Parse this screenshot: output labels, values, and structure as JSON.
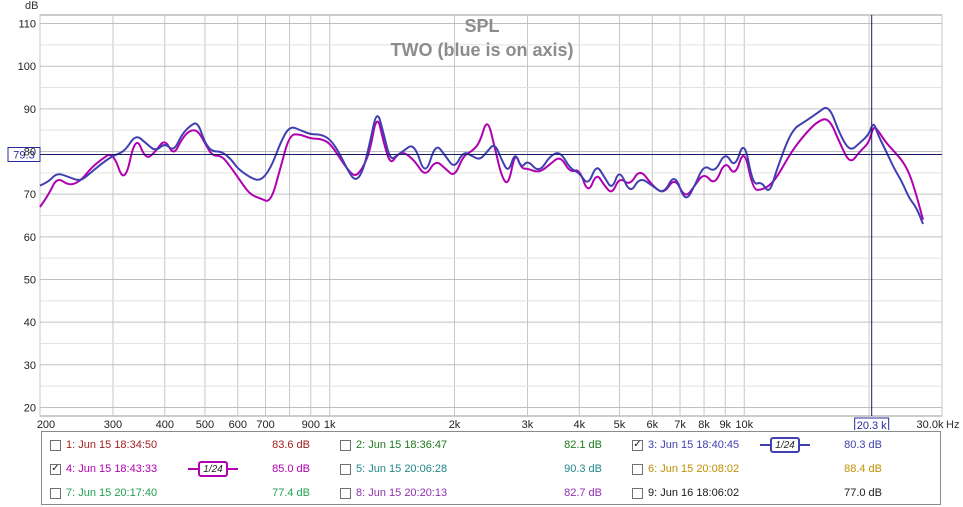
{
  "chart_data": {
    "type": "line",
    "title": "SPL",
    "subtitle": "TWO (blue is on axis)",
    "ylabel": "dB",
    "xunit": "Hz",
    "xscale": "log",
    "xlim": [
      200,
      30000
    ],
    "ylim": [
      18,
      112
    ],
    "grid": true,
    "y_ticks": [
      "20",
      "30",
      "40",
      "50",
      "60",
      "70",
      "80",
      "90",
      "100",
      "110"
    ],
    "y_tick_values": [
      20,
      30,
      40,
      50,
      60,
      70,
      80,
      90,
      100,
      110
    ],
    "x_ticks": [
      "200",
      "300",
      "400",
      "500",
      "600",
      "700",
      "900",
      "1k",
      "2k",
      "3k",
      "4k",
      "5k",
      "6k",
      "7k",
      "8k",
      "9k",
      "10k",
      "30.0k"
    ],
    "x_tick_values": [
      200,
      300,
      400,
      500,
      600,
      700,
      900,
      1000,
      2000,
      3000,
      4000,
      5000,
      6000,
      7000,
      8000,
      9000,
      10000,
      30000
    ],
    "cursor_y": 79.3,
    "cursor_y_label": "79.3",
    "cursor_x": 20300,
    "cursor_x_label": "20.3 k",
    "series": [
      {
        "name": "3: Jun 15 18:40:45",
        "color": "#4040b0",
        "x": [
          200,
          210,
          220,
          235,
          250,
          265,
          280,
          300,
          320,
          340,
          360,
          380,
          400,
          420,
          440,
          460,
          480,
          500,
          520,
          550,
          580,
          600,
          640,
          680,
          720,
          760,
          800,
          850,
          900,
          950,
          1000,
          1050,
          1100,
          1150,
          1200,
          1250,
          1300,
          1350,
          1400,
          1450,
          1500,
          1600,
          1700,
          1800,
          1900,
          2000,
          2100,
          2200,
          2300,
          2400,
          2500,
          2600,
          2700,
          2800,
          2900,
          3000,
          3200,
          3400,
          3600,
          3800,
          4000,
          4200,
          4400,
          4600,
          4800,
          5000,
          5300,
          5600,
          6000,
          6400,
          6800,
          7200,
          7600,
          8000,
          8500,
          9000,
          9500,
          10000,
          10500,
          11000,
          11500,
          12000,
          13000,
          14000,
          15000,
          16000,
          17000,
          18000,
          19000,
          20000,
          20500,
          21000,
          22000,
          23000,
          24000,
          25000,
          26000,
          27000
        ],
        "y": [
          72,
          73,
          75,
          74,
          73,
          75,
          77,
          79,
          80,
          84,
          82,
          80,
          82,
          80,
          84,
          86,
          87,
          82,
          80,
          80,
          78,
          76,
          74,
          73,
          76,
          82,
          86,
          85,
          84,
          84,
          83,
          80,
          76,
          73,
          75,
          82,
          90,
          84,
          78,
          79,
          80,
          82,
          74,
          82,
          79,
          76,
          80,
          79,
          78,
          80,
          82,
          78,
          75,
          80,
          76,
          78,
          75,
          79,
          80,
          76,
          75,
          72,
          77,
          74,
          71,
          76,
          70,
          74,
          72,
          70,
          75,
          68,
          72,
          77,
          75,
          80,
          76,
          83,
          72,
          73,
          70,
          76,
          85,
          87,
          89,
          91,
          84,
          80,
          82,
          84,
          87,
          84,
          80,
          76,
          73,
          69,
          67,
          63
        ]
      },
      {
        "name": "4: Jun 15 18:43:33",
        "color": "#b000b0",
        "x": [
          200,
          210,
          220,
          235,
          250,
          265,
          280,
          300,
          320,
          340,
          360,
          380,
          400,
          420,
          440,
          460,
          480,
          500,
          520,
          550,
          580,
          600,
          640,
          680,
          720,
          760,
          800,
          850,
          900,
          950,
          1000,
          1050,
          1100,
          1150,
          1200,
          1250,
          1300,
          1350,
          1400,
          1450,
          1500,
          1600,
          1700,
          1800,
          1900,
          2000,
          2100,
          2200,
          2300,
          2400,
          2500,
          2600,
          2700,
          2800,
          2900,
          3000,
          3200,
          3400,
          3600,
          3800,
          4000,
          4200,
          4400,
          4600,
          4800,
          5000,
          5300,
          5600,
          6000,
          6400,
          6800,
          7200,
          7600,
          8000,
          8500,
          9000,
          9500,
          10000,
          10500,
          11000,
          11500,
          12000,
          13000,
          14000,
          15000,
          16000,
          17000,
          18000,
          19000,
          20000,
          20500,
          21000,
          22000,
          23000,
          24000,
          25000,
          26000,
          27000
        ],
        "y": [
          67,
          70,
          74,
          72,
          73,
          76,
          78,
          80,
          72,
          84,
          78,
          80,
          83,
          79,
          83,
          85,
          85,
          82,
          79,
          79,
          76,
          74,
          70,
          69,
          68,
          76,
          84,
          84,
          83,
          83,
          82,
          79,
          76,
          74,
          76,
          80,
          89,
          82,
          77,
          79,
          80,
          78,
          74,
          78,
          76,
          74,
          79,
          80,
          82,
          88,
          81,
          74,
          72,
          80,
          76,
          76,
          75,
          77,
          79,
          75,
          76,
          70,
          75,
          72,
          70,
          74,
          72,
          76,
          72,
          70,
          74,
          69,
          72,
          75,
          72,
          78,
          74,
          81,
          71,
          71,
          72,
          74,
          80,
          84,
          87,
          88,
          82,
          77,
          80,
          82,
          86,
          85,
          82,
          80,
          78,
          75,
          70,
          64
        ]
      }
    ]
  },
  "axis": {
    "y_unit": "dB",
    "x_unit": "Hz",
    "cursor_y_label": "79.3",
    "cursor_x_label": "20.3 k"
  },
  "legend": [
    {
      "label": "1: Jun 15 18:34:50",
      "value": "83.6 dB",
      "color": "#a02020",
      "checked": false,
      "smoothing": ""
    },
    {
      "label": "2: Jun 15 18:36:47",
      "value": "82.1 dB",
      "color": "#207820",
      "checked": false,
      "smoothing": ""
    },
    {
      "label": "3: Jun 15 18:40:45",
      "value": "80.3 dB",
      "color": "#4040b0",
      "checked": true,
      "smoothing": "1/24"
    },
    {
      "label": "4: Jun 15 18:43:33",
      "value": "85.0 dB",
      "color": "#b000b0",
      "checked": true,
      "smoothing": "1/24"
    },
    {
      "label": "5: Jun 15 20:06:28",
      "value": "90.3 dB",
      "color": "#208888",
      "checked": false,
      "smoothing": ""
    },
    {
      "label": "6: Jun 15 20:08:02",
      "value": "88.4 dB",
      "color": "#c09000",
      "checked": false,
      "smoothing": ""
    },
    {
      "label": "7: Jun 15 20:17:40",
      "value": "77.4 dB",
      "color": "#20a050",
      "checked": false,
      "smoothing": ""
    },
    {
      "label": "8: Jun 15 20:20:13",
      "value": "82.7 dB",
      "color": "#9030b0",
      "checked": false,
      "smoothing": ""
    },
    {
      "label": "9: Jun 16 18:06:02",
      "value": "77.0 dB",
      "color": "#1a1a1a",
      "checked": false,
      "smoothing": ""
    }
  ]
}
